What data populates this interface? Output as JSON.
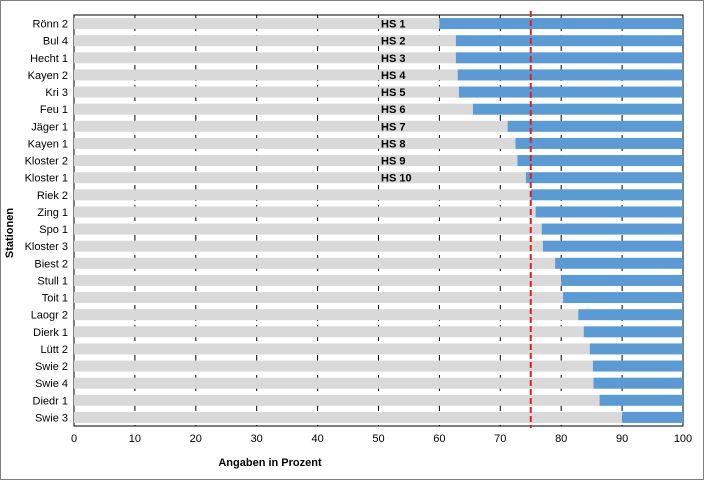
{
  "chart_data": {
    "type": "bar",
    "orientation": "horizontal",
    "stacked": true,
    "categories": [
      "Rönn 2",
      "Bul 4",
      "Hecht 1",
      "Kayen 2",
      "Kri 3",
      "Feu 1",
      "Jäger 1",
      "Kayen 1",
      "Kloster 2",
      "Kloster 1",
      "Riek 2",
      "Zing 1",
      "Spo 1",
      "Kloster 3",
      "Biest 2",
      "Stull 1",
      "Toit 1",
      "Laogr 2",
      "Dierk 1",
      "Lütt 2",
      "Swie 2",
      "Swie 4",
      "Diedr 1",
      "Swie 3"
    ],
    "series": [
      {
        "values": [
          60.0,
          62.7,
          62.7,
          63.0,
          63.2,
          65.5,
          71.2,
          72.5,
          72.8,
          74.2,
          75.0,
          75.8,
          76.8,
          77.0,
          79.0,
          80.0,
          80.3,
          82.8,
          83.7,
          84.7,
          85.2,
          85.3,
          86.3,
          90.0
        ],
        "color": "#d9d9d9"
      },
      {
        "values": [
          40.0,
          37.3,
          37.3,
          37.0,
          36.8,
          34.5,
          28.8,
          27.5,
          27.2,
          25.8,
          25.0,
          24.2,
          23.2,
          23.0,
          21.0,
          20.0,
          19.7,
          17.2,
          16.3,
          15.3,
          14.8,
          14.7,
          13.7,
          10.0
        ],
        "color": "#5b9bd5"
      }
    ],
    "annotations": [
      "HS 1",
      "HS 2",
      "HS 3",
      "HS 4",
      "HS 5",
      "HS 6",
      "HS 7",
      "HS 8",
      "HS 9",
      "HS 10"
    ],
    "threshold": 75,
    "threshold_color": "#e02020",
    "xlabel": "Angaben in Prozent",
    "ylabel": "Stationen",
    "xlim": [
      0,
      100
    ],
    "xticks": [
      0,
      10,
      20,
      30,
      40,
      50,
      60,
      70,
      80,
      90,
      100
    ],
    "grid": "vertical dashed"
  }
}
